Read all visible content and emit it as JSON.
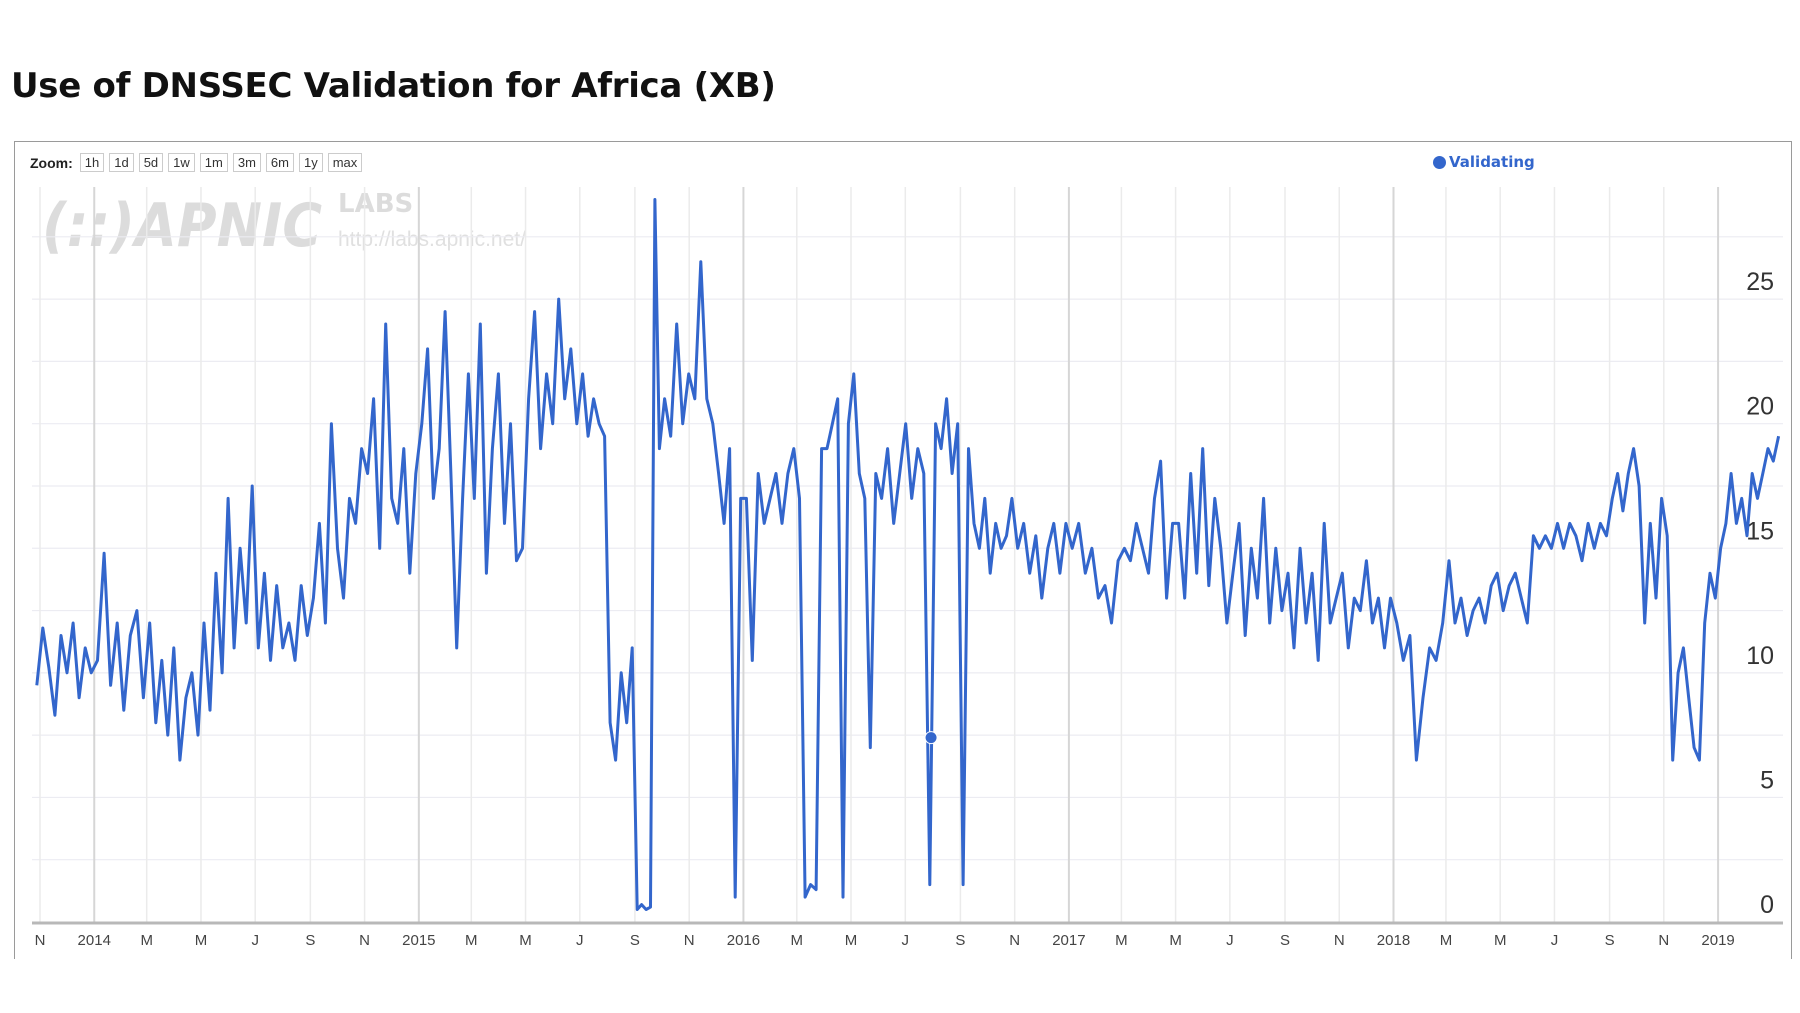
{
  "chart_data": {
    "type": "line",
    "title": "Use of DNSSEC Validation for Africa (XB)",
    "xlabel": "",
    "ylabel": "",
    "ylim": [
      0,
      29.5
    ],
    "xlim": [
      "2013-10-23",
      "2019-03-15"
    ],
    "grid": true,
    "legend": {
      "position": "top-right",
      "entries": [
        "Validating"
      ]
    },
    "y_ticks": [
      0,
      5,
      10,
      15,
      20,
      25
    ],
    "x_ticks": [
      {
        "date": "2013-11-01",
        "label": "N"
      },
      {
        "date": "2014-01-01",
        "label": "2014"
      },
      {
        "date": "2014-03-01",
        "label": "M"
      },
      {
        "date": "2014-05-01",
        "label": "M"
      },
      {
        "date": "2014-07-01",
        "label": "J"
      },
      {
        "date": "2014-09-01",
        "label": "S"
      },
      {
        "date": "2014-11-01",
        "label": "N"
      },
      {
        "date": "2015-01-01",
        "label": "2015"
      },
      {
        "date": "2015-03-01",
        "label": "M"
      },
      {
        "date": "2015-05-01",
        "label": "M"
      },
      {
        "date": "2015-07-01",
        "label": "J"
      },
      {
        "date": "2015-09-01",
        "label": "S"
      },
      {
        "date": "2015-11-01",
        "label": "N"
      },
      {
        "date": "2016-01-01",
        "label": "2016"
      },
      {
        "date": "2016-03-01",
        "label": "M"
      },
      {
        "date": "2016-05-01",
        "label": "M"
      },
      {
        "date": "2016-07-01",
        "label": "J"
      },
      {
        "date": "2016-09-01",
        "label": "S"
      },
      {
        "date": "2016-11-01",
        "label": "N"
      },
      {
        "date": "2017-01-01",
        "label": "2017"
      },
      {
        "date": "2017-03-01",
        "label": "M"
      },
      {
        "date": "2017-05-01",
        "label": "M"
      },
      {
        "date": "2017-07-01",
        "label": "J"
      },
      {
        "date": "2017-09-01",
        "label": "S"
      },
      {
        "date": "2017-11-01",
        "label": "N"
      },
      {
        "date": "2018-01-01",
        "label": "2018"
      },
      {
        "date": "2018-03-01",
        "label": "M"
      },
      {
        "date": "2018-05-01",
        "label": "M"
      },
      {
        "date": "2018-07-01",
        "label": "J"
      },
      {
        "date": "2018-09-01",
        "label": "S"
      },
      {
        "date": "2018-11-01",
        "label": "N"
      },
      {
        "date": "2019-01-01",
        "label": "2019"
      }
    ],
    "series": [
      {
        "name": "Validating",
        "color": "#3366cc",
        "segments": [
          {
            "from": "2013-10-25",
            "to": "2014-01-01",
            "values": [
              9.5,
              11.8,
              10.2,
              8.3,
              11.5,
              10,
              12,
              9,
              11,
              10
            ]
          },
          {
            "from": "2014-01-01",
            "to": "2014-03-01",
            "values": [
              10.5,
              14.8,
              9.5,
              12,
              8.5,
              11.5,
              12.5,
              9
            ]
          },
          {
            "from": "2014-03-01",
            "to": "2014-05-01",
            "values": [
              12,
              8,
              10.5,
              7.5,
              11,
              6.5,
              9,
              10,
              7.5
            ]
          },
          {
            "from": "2014-05-01",
            "to": "2014-07-01",
            "values": [
              12,
              8.5,
              14,
              10,
              17,
              11,
              15,
              12,
              17.5
            ]
          },
          {
            "from": "2014-07-01",
            "to": "2014-09-01",
            "values": [
              11,
              14,
              10.5,
              13.5,
              11,
              12,
              10.5,
              13.5,
              11.5
            ]
          },
          {
            "from": "2014-09-01",
            "to": "2014-11-01",
            "values": [
              13,
              16,
              12,
              20,
              15,
              13,
              17,
              16,
              19
            ]
          },
          {
            "from": "2014-11-01",
            "to": "2015-01-01",
            "values": [
              18,
              21,
              15,
              24,
              17,
              16,
              19,
              14,
              18
            ]
          },
          {
            "from": "2015-01-01",
            "to": "2015-03-01",
            "values": [
              20,
              23,
              17,
              19,
              24.5,
              18,
              11,
              17,
              22
            ]
          },
          {
            "from": "2015-03-01",
            "to": "2015-05-01",
            "values": [
              17,
              24,
              14,
              19,
              22,
              16,
              20,
              14.5,
              15
            ]
          },
          {
            "from": "2015-05-01",
            "to": "2015-07-01",
            "values": [
              21,
              24.5,
              19,
              22,
              20,
              25,
              21,
              23,
              20
            ]
          },
          {
            "from": "2015-07-01",
            "to": "2015-09-01",
            "values": [
              22,
              19.5,
              21,
              20,
              19.5,
              8,
              6.5,
              10,
              8,
              11
            ]
          },
          {
            "from": "2015-09-01",
            "to": "2015-10-01",
            "values": [
              0.5,
              0.7,
              0.5,
              0.6,
              29,
              19
            ]
          },
          {
            "from": "2015-10-01",
            "to": "2015-12-01",
            "values": [
              21,
              19.5,
              24,
              20,
              22,
              21,
              26.5,
              21,
              20
            ]
          },
          {
            "from": "2015-12-01",
            "to": "2016-01-01",
            "values": [
              18,
              16,
              19,
              1,
              17
            ]
          },
          {
            "from": "2016-01-01",
            "to": "2016-03-01",
            "values": [
              17,
              10.5,
              18,
              16,
              17,
              18,
              16,
              18,
              19
            ]
          },
          {
            "from": "2016-03-01",
            "to": "2016-04-01",
            "values": [
              17,
              1,
              1.5,
              1.3,
              19
            ]
          },
          {
            "from": "2016-04-01",
            "to": "2016-05-01",
            "values": [
              19,
              20,
              21,
              1,
              20
            ]
          },
          {
            "from": "2016-05-01",
            "to": "2016-06-01",
            "values": [
              22,
              18,
              17,
              7,
              18
            ]
          },
          {
            "from": "2016-06-01",
            "to": "2016-08-01",
            "values": [
              17,
              19,
              16,
              18,
              20,
              17,
              19,
              18,
              1.5
            ]
          },
          {
            "from": "2016-08-01",
            "to": "2016-09-01",
            "values": [
              20,
              19,
              21,
              18,
              20
            ]
          },
          {
            "from": "2016-09-01",
            "to": "2016-11-01",
            "values": [
              1.5,
              19,
              16,
              15,
              17,
              14,
              16,
              15,
              15.5,
              17
            ]
          },
          {
            "from": "2016-11-01",
            "to": "2017-01-01",
            "values": [
              15,
              16,
              14,
              15.5,
              13,
              15,
              16,
              14,
              16
            ]
          },
          {
            "from": "2017-01-01",
            "to": "2017-03-01",
            "values": [
              15,
              16,
              14,
              15,
              13,
              13.5,
              12,
              14.5
            ]
          },
          {
            "from": "2017-03-01",
            "to": "2017-05-01",
            "values": [
              15,
              14.5,
              16,
              15,
              14,
              17,
              18.5,
              13,
              16
            ]
          },
          {
            "from": "2017-05-01",
            "to": "2017-07-01",
            "values": [
              16,
              13,
              18,
              14,
              19,
              13.5,
              17,
              15,
              12
            ]
          },
          {
            "from": "2017-07-01",
            "to": "2017-09-01",
            "values": [
              14,
              16,
              11.5,
              15,
              13,
              17,
              12,
              15,
              12.5
            ]
          },
          {
            "from": "2017-09-01",
            "to": "2017-11-01",
            "values": [
              14,
              11,
              15,
              12,
              14,
              10.5,
              16,
              12,
              13
            ]
          },
          {
            "from": "2017-11-01",
            "to": "2018-01-01",
            "values": [
              14,
              11,
              13,
              12.5,
              14.5,
              12,
              13,
              11,
              13
            ]
          },
          {
            "from": "2018-01-01",
            "to": "2018-03-01",
            "values": [
              12,
              10.5,
              11.5,
              6.5,
              9,
              11,
              10.5,
              12
            ]
          },
          {
            "from": "2018-03-01",
            "to": "2018-05-01",
            "values": [
              14.5,
              12,
              13,
              11.5,
              12.5,
              13,
              12,
              13.5,
              14
            ]
          },
          {
            "from": "2018-05-01",
            "to": "2018-07-01",
            "values": [
              12.5,
              13.5,
              14,
              13,
              12,
              15.5,
              15,
              15.5,
              15
            ]
          },
          {
            "from": "2018-07-01",
            "to": "2018-09-01",
            "values": [
              16,
              15,
              16,
              15.5,
              14.5,
              16,
              15,
              16,
              15.5
            ]
          },
          {
            "from": "2018-09-01",
            "to": "2018-10-01",
            "values": [
              17,
              18,
              16.5,
              18,
              19
            ]
          },
          {
            "from": "2018-10-01",
            "to": "2018-11-08",
            "values": [
              17.5,
              12,
              16,
              13,
              17,
              15.5
            ]
          },
          {
            "from": "2018-11-08",
            "to": "2018-12-20",
            "values": [
              6.5,
              10,
              11,
              9,
              7,
              6.5,
              12
            ]
          },
          {
            "from": "2018-12-20",
            "to": "2019-03-13",
            "values": [
              14,
              13,
              15,
              16,
              18,
              16,
              17,
              15.5,
              18,
              17,
              18,
              19,
              18.5,
              19.5
            ]
          }
        ]
      }
    ],
    "highlighted_point": {
      "date": "2016-07-30",
      "value": 7.4
    }
  },
  "header": {
    "title": "Use of DNSSEC Validation for Africa (XB)"
  },
  "zoom": {
    "label": "Zoom:",
    "buttons": [
      "1h",
      "1d",
      "5d",
      "1w",
      "1m",
      "3m",
      "6m",
      "1y",
      "max"
    ]
  },
  "legend": {
    "label": "Validating"
  },
  "watermark": {
    "logo": "(::)APNIC",
    "labs": "LABS",
    "url": "http://labs.apnic.net/"
  }
}
